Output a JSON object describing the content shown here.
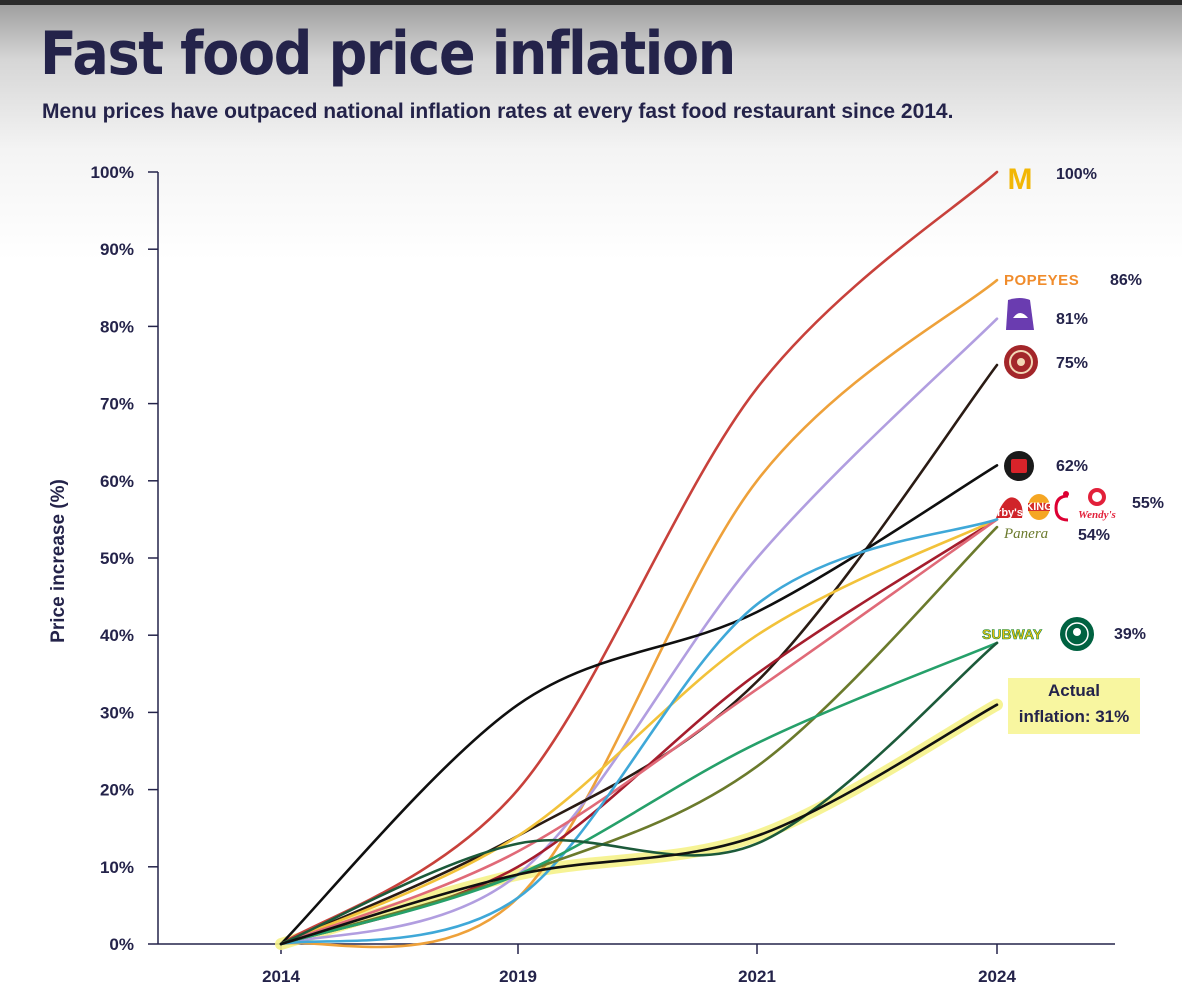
{
  "title": "Fast food price inflation",
  "subtitle": "Menu prices have outpaced national inflation rates at every fast food restaurant since 2014.",
  "chart_data": {
    "type": "line",
    "title": "Fast food price inflation",
    "subtitle": "Menu prices have outpaced national inflation rates at every fast food restaurant since 2014.",
    "xlabel": "",
    "ylabel": "Price increase (%)",
    "categories": [
      "2014",
      "2019",
      "2021",
      "2024"
    ],
    "y_ticks": [
      "0%",
      "10%",
      "20%",
      "30%",
      "40%",
      "50%",
      "60%",
      "70%",
      "80%",
      "90%",
      "100%"
    ],
    "ylim": [
      0,
      100
    ],
    "grid": false,
    "series": [
      {
        "name": "McDonald's",
        "color": "#c8413b",
        "values": [
          0,
          20,
          72,
          100
        ]
      },
      {
        "name": "Popeyes",
        "color": "#eea13a",
        "values": [
          0,
          6,
          60,
          86
        ]
      },
      {
        "name": "Taco Bell",
        "color": "#b19ee0",
        "values": [
          0,
          9,
          50,
          81
        ]
      },
      {
        "name": "Chipotle",
        "color": "#2a1b14",
        "values": [
          0,
          14,
          34,
          75
        ]
      },
      {
        "name": "Jack in the Box",
        "color": "#0f0f0f",
        "values": [
          0,
          31,
          43,
          62
        ]
      },
      {
        "name": "Arby's",
        "color": "#a51d2d",
        "values": [
          0,
          10,
          35,
          55
        ]
      },
      {
        "name": "Burger King",
        "color": "#f2c23a",
        "values": [
          0,
          14,
          40,
          55
        ]
      },
      {
        "name": "Chick-fil-A",
        "color": "#e06a78",
        "values": [
          0,
          12,
          33,
          55
        ]
      },
      {
        "name": "Wendy's",
        "color": "#3fa8d8",
        "values": [
          0,
          6,
          44,
          55
        ]
      },
      {
        "name": "Panera",
        "color": "#6b7a2c",
        "values": [
          0,
          9,
          23,
          54
        ]
      },
      {
        "name": "Subway",
        "color": "#26a06a",
        "values": [
          0,
          9,
          26,
          39
        ]
      },
      {
        "name": "Starbucks",
        "color": "#1c5a3a",
        "values": [
          0,
          13,
          13,
          39
        ]
      },
      {
        "name": "Actual inflation",
        "color": "#111111",
        "values": [
          0,
          9,
          14,
          31
        ],
        "highlight": "#f5f28a"
      }
    ],
    "end_labels": {
      "mcdonalds": "100%",
      "popeyes": "86%",
      "tacobell": "81%",
      "chipotle": "75%",
      "jackinthebox": "62%",
      "group": "55%",
      "panera": "54%",
      "subway_starbucks": "39%",
      "inflation_line1": "Actual",
      "inflation_line2": "inflation: 31%"
    },
    "brand_marks": {
      "mcdonalds": "M",
      "popeyes": "POPEYES",
      "arbys": "Arby's",
      "burgerking": "KING",
      "wendys": "Wendy's",
      "panera": "Panera",
      "subway": "SUBWAY"
    }
  },
  "colors": {
    "ink": "#24234a",
    "highlight": "#f8f6a0",
    "mcdonalds_gold": "#f2b705",
    "popeyes_orange": "#f08c2c",
    "tacobell_purple": "#6a3cb0",
    "chipotle_red": "#a3262a",
    "jack_red": "#d8232a",
    "subway_yellow": "#f4c20d",
    "subway_green": "#118a44",
    "starbucks_green": "#006241",
    "panera_olive": "#6b7a2c"
  },
  "icons": [
    "mcdonalds-logo-icon",
    "popeyes-logo-icon",
    "tacobell-logo-icon",
    "chipotle-logo-icon",
    "jackinthebox-logo-icon",
    "arbys-logo-icon",
    "burgerking-logo-icon",
    "chickfila-logo-icon",
    "wendys-logo-icon",
    "panera-logo-icon",
    "subway-logo-icon",
    "starbucks-logo-icon"
  ]
}
